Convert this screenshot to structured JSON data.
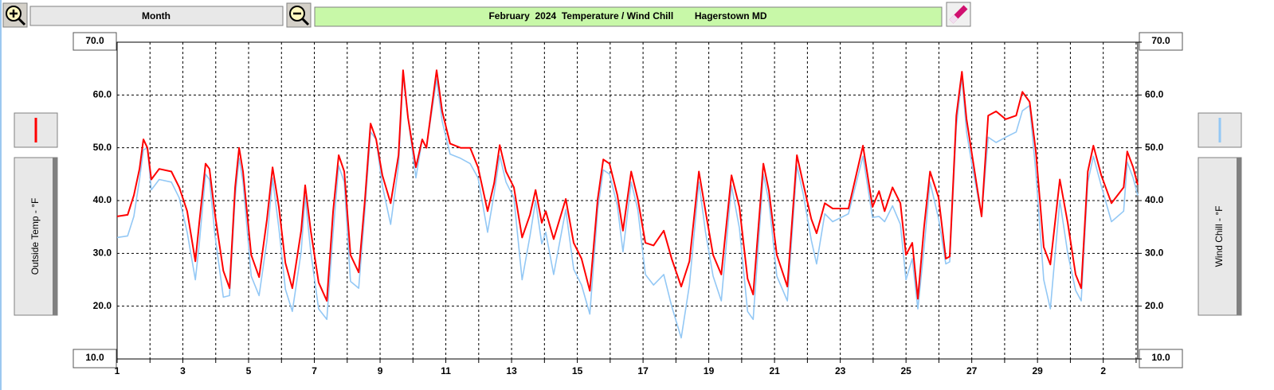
{
  "toolbar": {
    "period": "Month"
  },
  "chart_data": {
    "type": "line",
    "title": "February  2024  Temperature / Wind Chill        Hagerstown MD",
    "x": [
      1.0,
      1.32,
      1.51,
      1.68,
      1.8,
      1.92,
      2.04,
      2.28,
      2.65,
      2.89,
      3.13,
      3.38,
      3.5,
      3.69,
      3.81,
      3.98,
      4.23,
      4.42,
      4.59,
      4.71,
      4.83,
      5.08,
      5.32,
      5.56,
      5.73,
      5.92,
      6.12,
      6.33,
      6.6,
      6.72,
      6.89,
      7.13,
      7.38,
      7.57,
      7.74,
      7.91,
      8.1,
      8.35,
      8.54,
      8.71,
      8.88,
      9.07,
      9.32,
      9.56,
      9.7,
      9.85,
      10.09,
      10.28,
      10.41,
      10.72,
      10.89,
      11.13,
      11.45,
      11.74,
      11.98,
      12.27,
      12.47,
      12.64,
      12.83,
      13.07,
      13.32,
      13.56,
      13.73,
      13.92,
      14.04,
      14.28,
      14.65,
      14.89,
      15.13,
      15.38,
      15.62,
      15.79,
      15.98,
      16.22,
      16.39,
      16.64,
      16.84,
      17.07,
      17.32,
      17.63,
      17.87,
      18.16,
      18.41,
      18.7,
      18.9,
      19.13,
      19.38,
      19.69,
      19.93,
      20.18,
      20.35,
      20.66,
      20.83,
      21.07,
      21.39,
      21.68,
      21.87,
      22.12,
      22.28,
      22.53,
      22.77,
      23.25,
      23.69,
      23.98,
      24.18,
      24.35,
      24.59,
      24.83,
      25.0,
      25.19,
      25.36,
      25.55,
      25.73,
      25.99,
      26.21,
      26.33,
      26.53,
      26.7,
      26.84,
      27.01,
      27.3,
      27.5,
      27.74,
      28.03,
      28.35,
      28.54,
      28.76,
      28.95,
      29.19,
      29.39,
      29.68,
      29.92,
      30.16,
      30.33,
      30.53,
      30.7,
      30.94,
      31.25,
      31.62,
      31.73,
      31.91,
      32.05
    ],
    "series": [
      {
        "name": "Wind Chill - °F",
        "color": "#93c8f5",
        "axis": "y2",
        "values": [
          33,
          33.3,
          37,
          44,
          49.6,
          50,
          42,
          44,
          43.5,
          40.5,
          34,
          25,
          31.8,
          45,
          44,
          33.3,
          21.7,
          22,
          40.5,
          48,
          43.5,
          25.7,
          22,
          32.5,
          44.3,
          34.8,
          23.2,
          19,
          30.3,
          40.9,
          30.3,
          19.5,
          17.5,
          34,
          46.6,
          43.5,
          24.7,
          23.4,
          38.3,
          53,
          51.6,
          42.8,
          35.5,
          46.6,
          63.7,
          55.7,
          44.3,
          51.6,
          50,
          63,
          55,
          48.8,
          48,
          47,
          44.3,
          34,
          41.3,
          48.5,
          43.5,
          40.5,
          25,
          33.3,
          40,
          31.8,
          34,
          26,
          38.3,
          27,
          24,
          18.5,
          38.3,
          45.8,
          45,
          39,
          30.3,
          43.5,
          38.3,
          26,
          24,
          26,
          20,
          14,
          24,
          43.5,
          34,
          25.7,
          21,
          42.8,
          34.8,
          19,
          17.5,
          45,
          39.8,
          25.7,
          21,
          46.6,
          41.3,
          32.5,
          28,
          37.5,
          36,
          37.5,
          48.4,
          36.8,
          37,
          36,
          39,
          35.5,
          25,
          29,
          19.5,
          31,
          43.5,
          36.6,
          28,
          28.4,
          54,
          63.4,
          53,
          46.6,
          37,
          52,
          51,
          52,
          53,
          57,
          58,
          45.3,
          25,
          19.5,
          40,
          30,
          23,
          21,
          43.5,
          48.4,
          42.8,
          36,
          38,
          47.3,
          44.3,
          41
        ]
      },
      {
        "name": "Outside Temp - °F",
        "color": "#ff0000",
        "values": [
          37,
          37.3,
          41,
          46,
          51.6,
          50,
          44,
          46,
          45.5,
          42.5,
          38,
          28.5,
          35.8,
          47,
          46,
          37.3,
          26.7,
          23.4,
          42.5,
          50,
          45.5,
          29.7,
          25.5,
          36.5,
          46.3,
          38.8,
          28.2,
          23.4,
          34.3,
          42.9,
          34.3,
          24.5,
          21,
          38,
          48.6,
          45.5,
          29.7,
          26.4,
          40.3,
          54.6,
          51.6,
          44.8,
          39.5,
          48.6,
          64.7,
          55.7,
          46.3,
          51.6,
          50,
          64.7,
          56.9,
          50.8,
          50,
          50,
          46.3,
          38,
          43.3,
          50.5,
          45.5,
          42.5,
          33,
          37.3,
          42,
          35.8,
          38,
          32.7,
          40.3,
          32,
          29,
          22.9,
          40.3,
          47.8,
          47,
          41,
          34.3,
          45.5,
          40.3,
          32,
          31.5,
          34.3,
          29,
          23.7,
          28.5,
          45.5,
          38,
          29.7,
          26,
          44.8,
          38.8,
          25.2,
          22.2,
          47,
          41.8,
          29.7,
          23.7,
          48.6,
          43.3,
          36.5,
          33.8,
          39.5,
          38.5,
          38.5,
          50.4,
          38.8,
          41.8,
          38,
          42.5,
          39.5,
          29.7,
          32,
          21.4,
          35,
          45.5,
          40.6,
          29,
          29.4,
          56.1,
          64.4,
          55.4,
          48.6,
          37,
          56.1,
          56.9,
          55.4,
          56.1,
          60.6,
          58.7,
          49.3,
          31.2,
          27.9,
          44,
          35.8,
          26,
          23.4,
          45.5,
          50.4,
          44.8,
          39.5,
          42.5,
          49.3,
          46.3,
          43
        ]
      }
    ],
    "xlim": [
      1,
      32.05
    ],
    "xticks": [
      1,
      3,
      5,
      7,
      9,
      11,
      13,
      15,
      17,
      19,
      21,
      23,
      25,
      27,
      29,
      {
        "value": 31,
        "label": "2"
      }
    ],
    "x_minor_ticks": [
      2,
      4,
      6,
      8,
      10,
      12,
      14,
      16,
      18,
      20,
      22,
      24,
      26,
      28,
      30,
      32
    ],
    "ylim": [
      10,
      70
    ],
    "yticks": [
      {
        "value": 10,
        "label": "10.0"
      },
      {
        "value": 20,
        "label": "20.0"
      },
      {
        "value": 30,
        "label": "30.0"
      },
      {
        "value": 40,
        "label": "40.0"
      },
      {
        "value": 50,
        "label": "50.0"
      },
      {
        "value": 60,
        "label": "60.0"
      },
      {
        "value": 70,
        "label": "70.0"
      }
    ],
    "y2lim": [
      10,
      70
    ],
    "y2ticks": [
      {
        "value": 10,
        "label": "10.0"
      },
      {
        "value": 20,
        "label": "20.0"
      },
      {
        "value": 30,
        "label": "30.0"
      },
      {
        "value": 40,
        "label": "40.0"
      },
      {
        "value": 50,
        "label": "50.0"
      },
      {
        "value": 60,
        "label": "60.0"
      },
      {
        "value": 70,
        "label": "70.0"
      }
    ],
    "grid": true
  }
}
